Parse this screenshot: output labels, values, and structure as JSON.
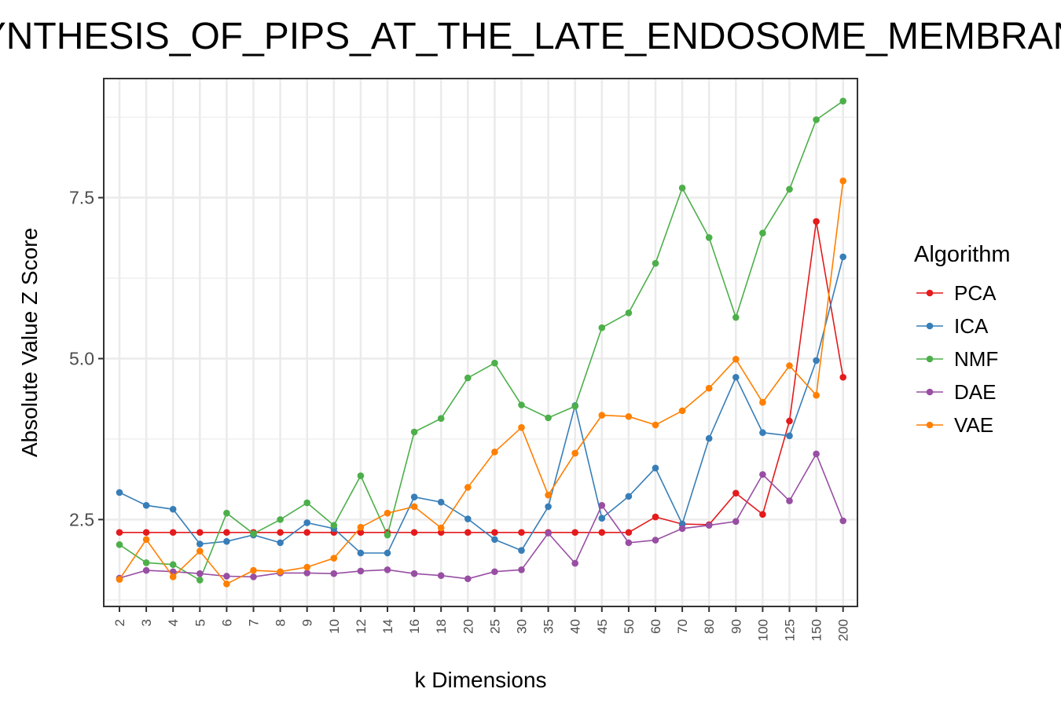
{
  "chart_data": {
    "type": "line",
    "title": "SYNTHESIS_OF_PIPS_AT_THE_LATE_ENDOSOME_MEMBRANE",
    "xlabel": "k Dimensions",
    "ylabel": "Absolute Value Z Score",
    "legend_title": "Algorithm",
    "legend_position": "right",
    "grid": true,
    "categories": [
      "2",
      "3",
      "4",
      "5",
      "6",
      "7",
      "8",
      "9",
      "10",
      "12",
      "14",
      "16",
      "18",
      "20",
      "25",
      "30",
      "35",
      "40",
      "45",
      "50",
      "60",
      "70",
      "80",
      "90",
      "100",
      "125",
      "150",
      "200"
    ],
    "yticks": [
      2.5,
      5.0,
      7.5
    ],
    "ytick_labels": [
      "2.5",
      "5.0",
      "7.5"
    ],
    "ylim": [
      1.15,
      9.35
    ],
    "series": [
      {
        "name": "PCA",
        "color": "#e41a1c",
        "values": [
          2.3,
          2.3,
          2.3,
          2.3,
          2.3,
          2.3,
          2.3,
          2.3,
          2.3,
          2.3,
          2.3,
          2.3,
          2.3,
          2.3,
          2.3,
          2.3,
          2.3,
          2.3,
          2.3,
          2.3,
          2.54,
          2.43,
          2.42,
          2.91,
          2.58,
          4.03,
          7.13,
          4.71
        ]
      },
      {
        "name": "ICA",
        "color": "#377eb8",
        "values": [
          2.92,
          2.72,
          2.66,
          2.12,
          2.16,
          2.26,
          2.14,
          2.45,
          2.36,
          1.98,
          1.98,
          2.85,
          2.77,
          2.51,
          2.19,
          2.02,
          2.7,
          4.27,
          2.52,
          2.86,
          3.3,
          2.43,
          3.76,
          4.71,
          3.85,
          3.8,
          4.97,
          6.58
        ]
      },
      {
        "name": "NMF",
        "color": "#4daf4a",
        "values": [
          2.11,
          1.83,
          1.8,
          1.56,
          2.6,
          2.28,
          2.5,
          2.76,
          2.41,
          3.18,
          2.26,
          3.86,
          4.07,
          4.7,
          4.93,
          4.28,
          4.08,
          4.26,
          5.48,
          5.71,
          6.48,
          7.65,
          6.88,
          5.64,
          6.95,
          7.63,
          8.71,
          9.0
        ]
      },
      {
        "name": "DAE",
        "color": "#984ea3",
        "values": [
          1.59,
          1.71,
          1.69,
          1.66,
          1.62,
          1.61,
          1.67,
          1.67,
          1.66,
          1.7,
          1.72,
          1.66,
          1.63,
          1.58,
          1.69,
          1.72,
          2.29,
          1.82,
          2.72,
          2.14,
          2.18,
          2.36,
          2.41,
          2.47,
          3.2,
          2.79,
          3.52,
          2.48
        ]
      },
      {
        "name": "VAE",
        "color": "#ff7f00",
        "values": [
          1.57,
          2.19,
          1.61,
          2.01,
          1.5,
          1.71,
          1.69,
          1.76,
          1.9,
          2.38,
          2.6,
          2.7,
          2.37,
          3.0,
          3.55,
          3.93,
          2.88,
          3.53,
          4.12,
          4.1,
          3.97,
          4.19,
          4.54,
          4.99,
          4.32,
          4.89,
          4.43,
          7.76
        ]
      }
    ]
  }
}
